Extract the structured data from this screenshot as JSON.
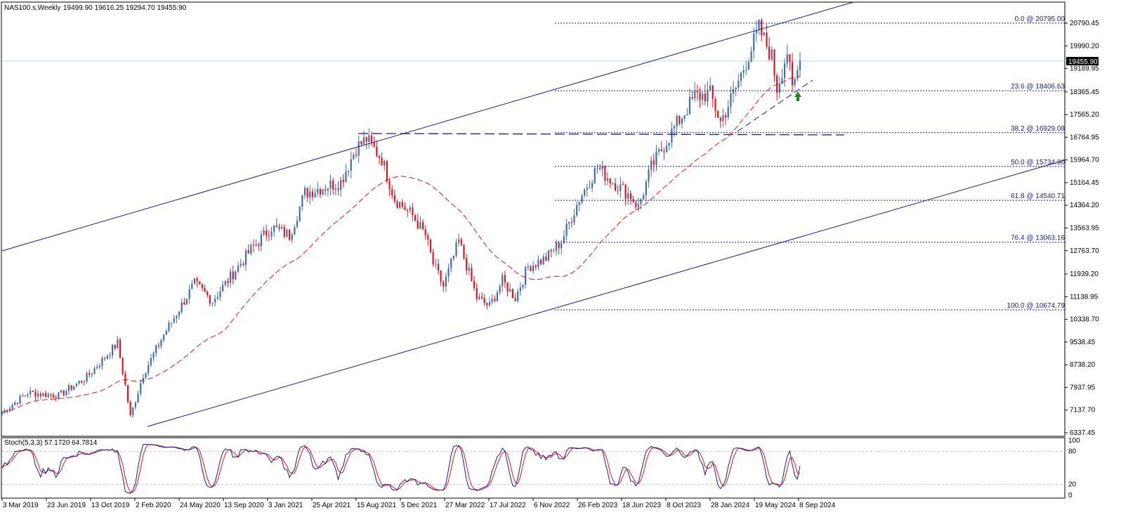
{
  "header": {
    "symbol_timeframe": "NAS100.s,Weekly",
    "ohlc": "19499.90 19616.25 19294.70 19455.90"
  },
  "indicator": {
    "label": "Stoch(5,3,3) 57.1720 64.7814",
    "levels": [
      80,
      20
    ],
    "axis_ticks": [
      "100",
      "80",
      "20",
      "0"
    ]
  },
  "current_price_label": "19455.90",
  "colors": {
    "bull_candle": "#3d6ea8",
    "bear_candle": "#e8111a",
    "channel": "#1a1a8c",
    "ma": "#e8111a",
    "fib": "#1a1a8c",
    "stoch_main": "#1a1a8c",
    "stoch_signal": "#e8111a",
    "signal_arrow": "#1a8a1a",
    "current_price_line": "#b9d6ea"
  },
  "chart_data": {
    "type": "candlestick",
    "symbol": "NAS100.s",
    "timeframe": "Weekly",
    "ylim": [
      6337.45,
      21590.45
    ],
    "y_ticks": [
      20790.45,
      19990.2,
      19189.95,
      18365.45,
      17565.2,
      16764.95,
      15964.7,
      15164.45,
      14364.2,
      13563.95,
      12763.7,
      11939.2,
      11138.95,
      10338.7,
      9538.45,
      8738.2,
      7937.95,
      7137.7,
      6337.45
    ],
    "x_ticks": [
      "3 Mar 2019",
      "23 Jun 2019",
      "13 Oct 2019",
      "2 Feb 2020",
      "24 May 2020",
      "13 Sep 2020",
      "3 Jan 2021",
      "25 Apr 2021",
      "15 Aug 2021",
      "5 Dec 2021",
      "27 Mar 2022",
      "17 Jul 2022",
      "6 Nov 2022",
      "26 Feb 2023",
      "18 Jun 2023",
      "8 Oct 2023",
      "28 Jan 2024",
      "19 May 2024",
      "8 Sep 2024"
    ],
    "fibonacci": [
      {
        "label": "0.0 @ 20795.00",
        "price": 20795.0
      },
      {
        "label": "23.6 @ 18406.63",
        "price": 18406.63
      },
      {
        "label": "38.2 @ 16929.08",
        "price": 16929.08
      },
      {
        "label": "50.0 @ 15734.90",
        "price": 15734.9
      },
      {
        "label": "61.8 @ 14540.71",
        "price": 14540.71
      },
      {
        "label": "76.4 @ 13063.16",
        "price": 13063.16
      },
      {
        "label": "100.0 @ 10674.79",
        "price": 10674.79
      }
    ],
    "price_path_weekly_closes_keypoints": [
      {
        "week": 0,
        "close": 7050
      },
      {
        "week": 10,
        "close": 7750
      },
      {
        "week": 22,
        "close": 7650
      },
      {
        "week": 33,
        "close": 8300
      },
      {
        "week": 45,
        "close": 9500
      },
      {
        "week": 48,
        "close": 8000
      },
      {
        "week": 50,
        "close": 6900
      },
      {
        "week": 55,
        "close": 8400
      },
      {
        "week": 63,
        "close": 9800
      },
      {
        "week": 75,
        "close": 11600
      },
      {
        "week": 82,
        "close": 11000
      },
      {
        "week": 97,
        "close": 12800
      },
      {
        "week": 105,
        "close": 13600
      },
      {
        "week": 112,
        "close": 13300
      },
      {
        "week": 118,
        "close": 14800
      },
      {
        "week": 125,
        "close": 15000
      },
      {
        "week": 132,
        "close": 15200
      },
      {
        "week": 138,
        "close": 16400
      },
      {
        "week": 142,
        "close": 16700
      },
      {
        "week": 148,
        "close": 16000
      },
      {
        "week": 153,
        "close": 14600
      },
      {
        "week": 160,
        "close": 14000
      },
      {
        "week": 165,
        "close": 13300
      },
      {
        "week": 168,
        "close": 12300
      },
      {
        "week": 172,
        "close": 11500
      },
      {
        "week": 178,
        "close": 13100
      },
      {
        "week": 185,
        "close": 11100
      },
      {
        "week": 190,
        "close": 10800
      },
      {
        "week": 195,
        "close": 11700
      },
      {
        "week": 200,
        "close": 11100
      },
      {
        "week": 205,
        "close": 12200
      },
      {
        "week": 212,
        "close": 12500
      },
      {
        "week": 218,
        "close": 13100
      },
      {
        "week": 225,
        "close": 14600
      },
      {
        "week": 232,
        "close": 15700
      },
      {
        "week": 238,
        "close": 15200
      },
      {
        "week": 245,
        "close": 14700
      },
      {
        "week": 248,
        "close": 14300
      },
      {
        "week": 253,
        "close": 15700
      },
      {
        "week": 262,
        "close": 17100
      },
      {
        "week": 270,
        "close": 18200
      },
      {
        "week": 276,
        "close": 18300
      },
      {
        "week": 280,
        "close": 17300
      },
      {
        "week": 286,
        "close": 18500
      },
      {
        "week": 292,
        "close": 19900
      },
      {
        "week": 295,
        "close": 20600
      },
      {
        "week": 300,
        "close": 19600
      },
      {
        "week": 302,
        "close": 18500
      },
      {
        "week": 306,
        "close": 19800
      },
      {
        "week": 308,
        "close": 18400
      },
      {
        "week": 311,
        "close": 19456
      }
    ],
    "total_weeks": 312,
    "start_x": 3,
    "end_x": 1139
  }
}
